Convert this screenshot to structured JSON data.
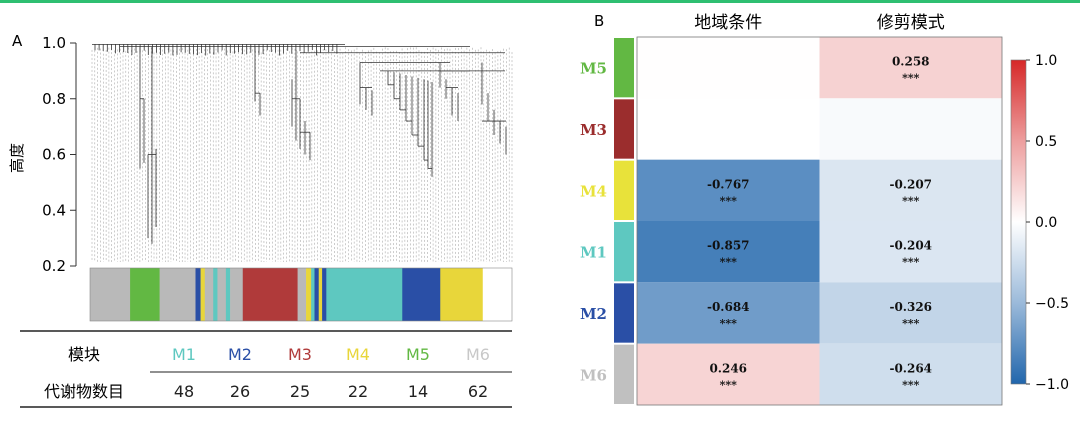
{
  "panel_a": {
    "label": "A",
    "ylabel": "高度",
    "y_ticks": [
      "1.0",
      "0.8",
      "0.6",
      "0.4",
      "0.2"
    ]
  },
  "panel_b": {
    "label": "B"
  },
  "table": {
    "header_module": "模块",
    "header_count": "代谢物数目",
    "modules": [
      {
        "name": "M1",
        "count": "48",
        "color": "#5ec8c0"
      },
      {
        "name": "M2",
        "count": "26",
        "color": "#2a4fa6"
      },
      {
        "name": "M3",
        "count": "25",
        "color": "#b03a3a"
      },
      {
        "name": "M4",
        "count": "22",
        "color": "#e8d63a"
      },
      {
        "name": "M5",
        "count": "14",
        "color": "#62b843"
      },
      {
        "name": "M6",
        "count": "62",
        "color": "#c8c8c8"
      }
    ]
  },
  "chart_data": [
    {
      "type": "dendrogram",
      "title": "",
      "ylabel": "高度",
      "ylim": [
        0.2,
        1.0
      ],
      "module_color_bar": [
        {
          "module": "M6",
          "color": "#b9b9b9",
          "share": 0.095
        },
        {
          "module": "M5",
          "color": "#62b843",
          "share": 0.07
        },
        {
          "module": "M6",
          "color": "#b9b9b9",
          "share": 0.085
        },
        {
          "module": "M2",
          "color": "#2a4fa6",
          "share": 0.012
        },
        {
          "module": "M4",
          "color": "#e8d63a",
          "share": 0.01
        },
        {
          "module": "M6",
          "color": "#b9b9b9",
          "share": 0.02
        },
        {
          "module": "M1",
          "color": "#5ec8c0",
          "share": 0.01
        },
        {
          "module": "M6",
          "color": "#b9b9b9",
          "share": 0.02
        },
        {
          "module": "M1",
          "color": "#5ec8c0",
          "share": 0.01
        },
        {
          "module": "M6",
          "color": "#b9b9b9",
          "share": 0.03
        },
        {
          "module": "M3",
          "color": "#b03a3a",
          "share": 0.13
        },
        {
          "module": "M6",
          "color": "#b9b9b9",
          "share": 0.02
        },
        {
          "module": "M4",
          "color": "#e8d63a",
          "share": 0.012
        },
        {
          "module": "M1",
          "color": "#5ec8c0",
          "share": 0.008
        },
        {
          "module": "M2",
          "color": "#2a4fa6",
          "share": 0.01
        },
        {
          "module": "M4",
          "color": "#e8d63a",
          "share": 0.008
        },
        {
          "module": "M2",
          "color": "#2a4fa6",
          "share": 0.01
        },
        {
          "module": "M1",
          "color": "#5ec8c0",
          "share": 0.18
        },
        {
          "module": "M2",
          "color": "#2a4fa6",
          "share": 0.09
        },
        {
          "module": "M4",
          "color": "#e8d63a",
          "share": 0.1
        }
      ]
    },
    {
      "type": "heatmap",
      "title": "",
      "columns": [
        "地域条件",
        "修剪模式"
      ],
      "rows": [
        "M5",
        "M3",
        "M4",
        "M1",
        "M2",
        "M6"
      ],
      "row_colors": [
        "#62b843",
        "#9b2d2d",
        "#e8e23a",
        "#5ec8c0",
        "#2a4fa6",
        "#c0c0c0"
      ],
      "values": [
        [
          0.01,
          0.258
        ],
        [
          0.0,
          -0.05
        ],
        [
          -0.767,
          -0.207
        ],
        [
          -0.857,
          -0.204
        ],
        [
          -0.684,
          -0.326
        ],
        [
          0.246,
          -0.264
        ]
      ],
      "labels": [
        [
          "",
          "0.258"
        ],
        [
          "",
          ""
        ],
        [
          "-0.767",
          "-0.207"
        ],
        [
          "-0.857",
          "-0.204"
        ],
        [
          "-0.684",
          "-0.326"
        ],
        [
          "0.246",
          "-0.264"
        ]
      ],
      "significance": [
        [
          "",
          "***"
        ],
        [
          "",
          ""
        ],
        [
          "***",
          "***"
        ],
        [
          "***",
          "***"
        ],
        [
          "***",
          "***"
        ],
        [
          "***",
          "***"
        ]
      ],
      "colorbar": {
        "min": -1.0,
        "max": 1.0,
        "ticks": [
          "1.0",
          "0.5",
          "0.0",
          "−0.5",
          "−1.0"
        ],
        "tick_values": [
          1.0,
          0.5,
          0.0,
          -0.5,
          -1.0
        ]
      }
    }
  ]
}
